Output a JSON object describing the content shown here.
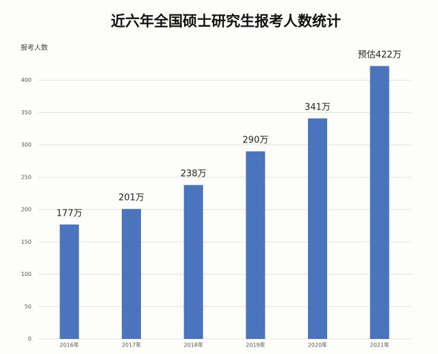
{
  "chart_data": {
    "type": "bar",
    "title": "近六年全国硕士研究生报考人数统计",
    "y_label": "报考人数",
    "categories": [
      "2016年",
      "2017年",
      "2018年",
      "2019年",
      "2020年",
      "2021年"
    ],
    "values": [
      177,
      201,
      238,
      290,
      341,
      422
    ],
    "value_labels": [
      "177万",
      "201万",
      "238万",
      "290万",
      "341万",
      "预估422万"
    ],
    "color": "#4a74bc",
    "ylim": [
      0,
      450
    ],
    "yticks": [
      0,
      50,
      100,
      150,
      200,
      250,
      300,
      350,
      400
    ],
    "grid": true
  }
}
